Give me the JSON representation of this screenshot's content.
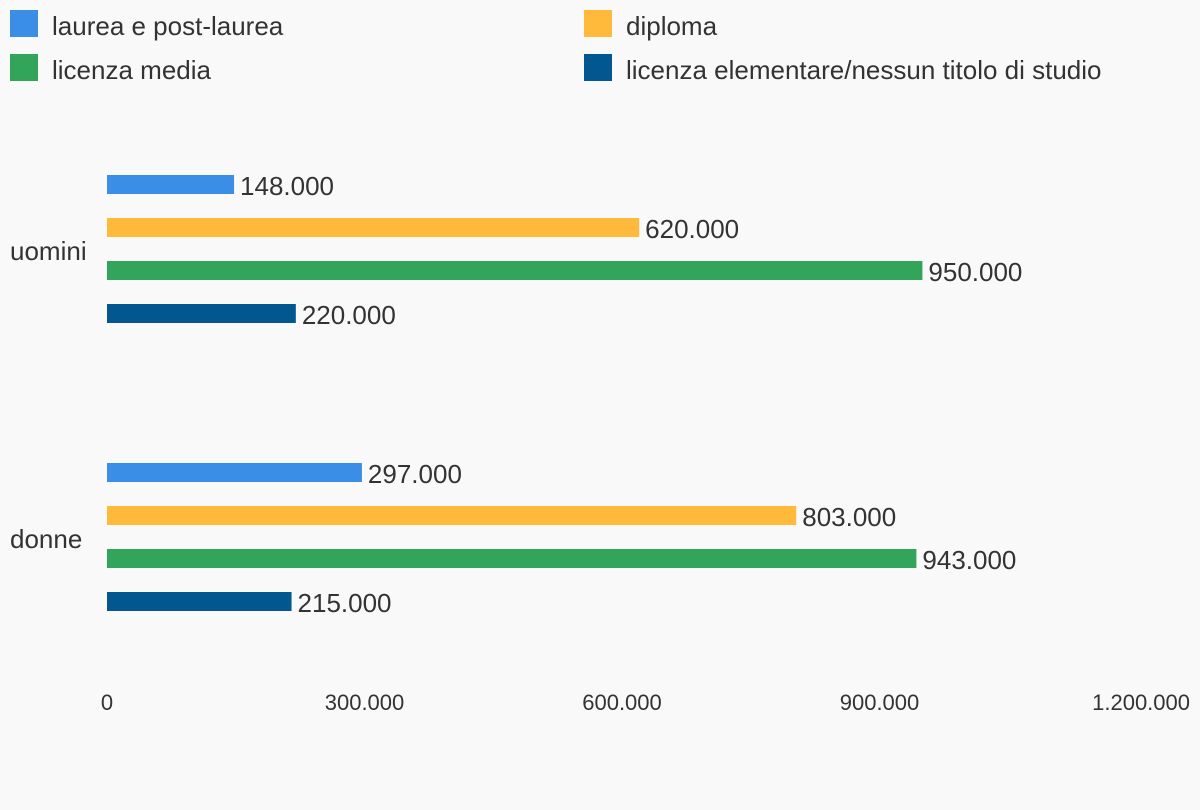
{
  "chart_data": {
    "type": "bar",
    "orientation": "horizontal",
    "title": "",
    "xlabel": "",
    "ylabel": "",
    "categories": [
      "uomini",
      "donne"
    ],
    "series": [
      {
        "name": "laurea e post-laurea",
        "color": "#3a8ee6",
        "values": [
          148000,
          297000
        ],
        "labels": [
          "148.000",
          "297.000"
        ]
      },
      {
        "name": "diploma",
        "color": "#ffb93b",
        "values": [
          620000,
          803000
        ],
        "labels": [
          "620.000",
          "803.000"
        ]
      },
      {
        "name": "licenza media",
        "color": "#32a55b",
        "values": [
          950000,
          943000
        ],
        "labels": [
          "950.000",
          "943.000"
        ]
      },
      {
        "name": "licenza elementare/nessun titolo di studio",
        "color": "#035791",
        "values": [
          220000,
          215000
        ],
        "labels": [
          "220.000",
          "215.000"
        ]
      }
    ],
    "xlim": [
      0,
      1200000
    ],
    "ticks": [
      0,
      300000,
      600000,
      900000,
      1200000
    ],
    "tick_labels": [
      "0",
      "300.000",
      "600.000",
      "900.000",
      "1.200.000"
    ],
    "grid": false,
    "legend": "top"
  }
}
